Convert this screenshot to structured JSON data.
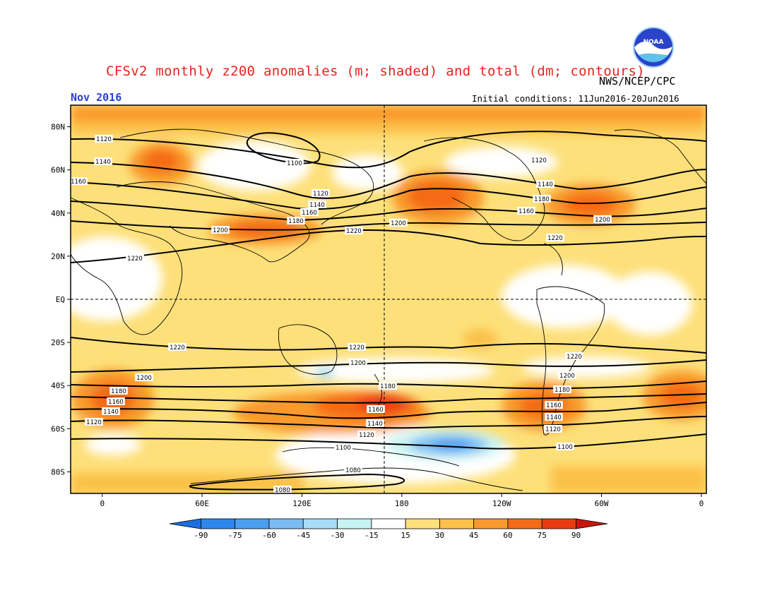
{
  "title": "CFSv2 monthly z200 anomalies (m; shaded) and total (dm; contours)",
  "agency": "NWS/NCEP/CPC",
  "logo_text": "NOAA",
  "month_label": "Nov 2016",
  "initial_conditions": "Initial conditions: 11Jun2016-20Jun2016",
  "lat_labels": [
    "80N",
    "60N",
    "40N",
    "20N",
    "EQ",
    "20S",
    "40S",
    "60S",
    "80S"
  ],
  "lat_values": [
    80,
    60,
    40,
    20,
    0,
    -20,
    -40,
    -60,
    -80
  ],
  "lon_labels": [
    "0",
    "60E",
    "120E",
    "180",
    "120W",
    "60W",
    "0"
  ],
  "lon_values": [
    0,
    60,
    120,
    180,
    240,
    300,
    360
  ],
  "colorbar": {
    "ticks": [
      "-90",
      "-75",
      "-60",
      "-45",
      "-30",
      "-15",
      "15",
      "30",
      "45",
      "60",
      "75",
      "90"
    ],
    "colors": [
      "#1a6fe0",
      "#2d86ec",
      "#4b9ef0",
      "#7cbcf4",
      "#a8dcf7",
      "#c8f3f3",
      "#ffffff",
      "#fde07a",
      "#fbc14a",
      "#f99a2a",
      "#f56a17",
      "#e93b12",
      "#c7160e"
    ]
  },
  "contour_labels": [
    "1120",
    "1140",
    "1160",
    "1180",
    "1200",
    "1220",
    "1100",
    "1080"
  ]
}
